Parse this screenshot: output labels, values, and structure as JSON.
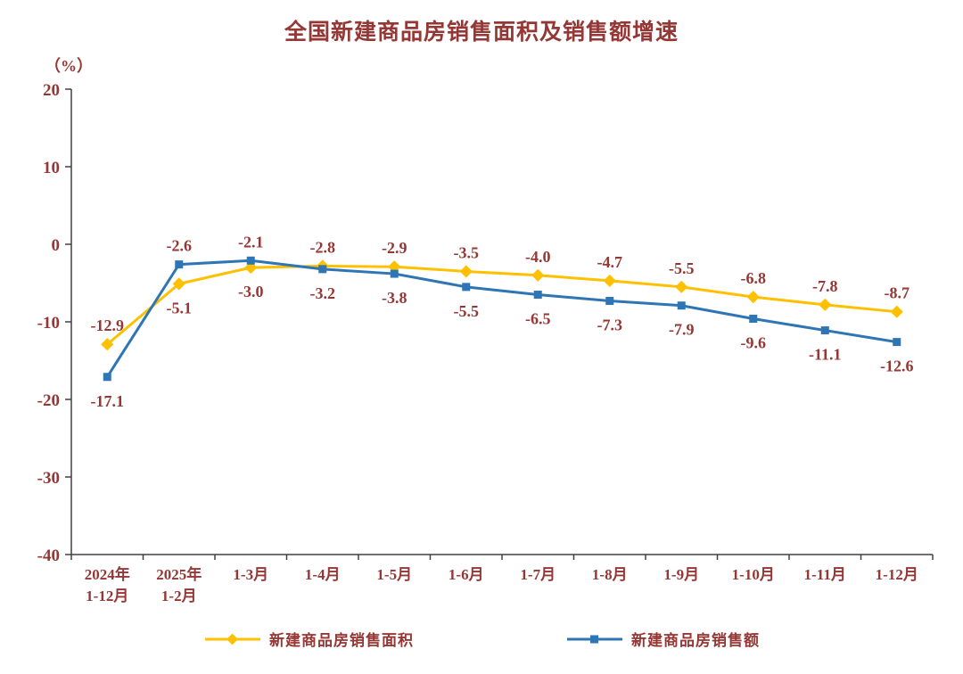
{
  "page": {
    "title": "全国新建商品房销售面积及销售额增速",
    "y_unit_label": "（%）"
  },
  "chart_data": {
    "type": "line",
    "title": "全国新建商品房销售面积及销售额增速",
    "ylabel": "（%）",
    "xlabel": "",
    "ylim": [
      -40,
      20
    ],
    "yticks": [
      20,
      10,
      0,
      -10,
      -20,
      -30,
      -40
    ],
    "grid": false,
    "legend_position": "bottom",
    "text_color": "#953734",
    "axis_color": "#404040",
    "categories": [
      "2024年\n1-12月",
      "2025年\n1-2月",
      "1-3月",
      "1-4月",
      "1-5月",
      "1-6月",
      "1-7月",
      "1-8月",
      "1-9月",
      "1-10月",
      "1-11月",
      "1-12月"
    ],
    "series": [
      {
        "name": "新建商品房销售面积",
        "color": "#FFC000",
        "marker": "diamond",
        "values": [
          -12.9,
          -5.1,
          -3.0,
          -2.8,
          -2.9,
          -3.5,
          -4.0,
          -4.7,
          -5.5,
          -6.8,
          -7.8,
          -8.7
        ]
      },
      {
        "name": "新建商品房销售额",
        "color": "#2E75B6",
        "marker": "square",
        "values": [
          -17.1,
          -2.6,
          -2.1,
          -3.2,
          -3.8,
          -5.5,
          -6.5,
          -7.3,
          -7.9,
          -9.6,
          -11.1,
          -12.6
        ]
      }
    ]
  }
}
